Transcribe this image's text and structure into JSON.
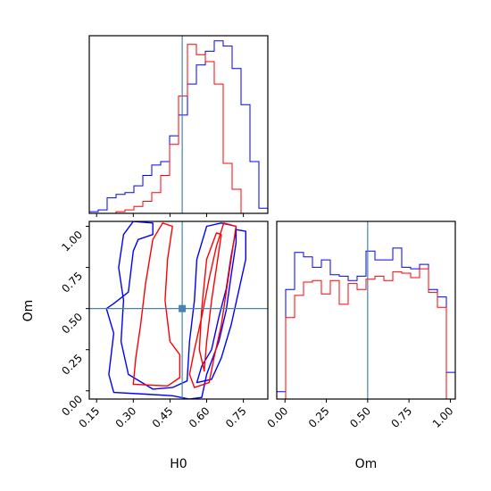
{
  "chart_data": {
    "type": "corner",
    "parameters": [
      "H0",
      "Om"
    ],
    "truths": {
      "H0": 0.5,
      "Om": 0.5
    },
    "truth_color": "#4682b4",
    "series": [
      {
        "color": "#0000ff"
      },
      {
        "color": "#ff0000"
      }
    ],
    "H0": {
      "xlabel": "H0",
      "range": [
        0.12,
        0.85
      ],
      "ticks": [
        0.15,
        0.3,
        0.45,
        0.6,
        0.75
      ],
      "tick_labels": [
        "0.15",
        "0.30",
        "0.45",
        "0.60",
        "0.75"
      ],
      "hist_bins": [
        0.12,
        0.1565,
        0.193,
        0.2295,
        0.266,
        0.3025,
        0.339,
        0.3755,
        0.412,
        0.4485,
        0.485,
        0.5215,
        0.558,
        0.5945,
        0.631,
        0.6675,
        0.704,
        0.7405,
        0.777,
        0.8135,
        0.85
      ],
      "hist_blue": [
        0.01,
        0.02,
        0.09,
        0.11,
        0.12,
        0.16,
        0.22,
        0.28,
        0.3,
        0.45,
        0.57,
        0.75,
        0.86,
        0.94,
        1.0,
        0.97,
        0.84,
        0.63,
        0.3,
        0.03
      ],
      "hist_red": [
        0.0,
        0.0,
        0.0,
        0.01,
        0.02,
        0.04,
        0.07,
        0.12,
        0.22,
        0.4,
        0.68,
        0.98,
        0.92,
        0.88,
        0.75,
        0.29,
        0.14,
        0.0,
        0.0,
        0.0
      ]
    },
    "Om": {
      "xlabel": "Om",
      "ylabel": "Om",
      "range": [
        -0.05,
        1.03
      ],
      "ticks": [
        0.0,
        0.25,
        0.5,
        0.75,
        1.0
      ],
      "tick_labels": [
        "0.00",
        "0.25",
        "0.50",
        "0.75",
        "1.00"
      ],
      "hist_bins": [
        -0.05,
        0.004,
        0.058,
        0.112,
        0.166,
        0.22,
        0.274,
        0.328,
        0.382,
        0.436,
        0.49,
        0.544,
        0.598,
        0.652,
        0.706,
        0.76,
        0.814,
        0.868,
        0.922,
        0.976,
        1.03
      ],
      "hist_blue": [
        0.05,
        0.74,
        0.99,
        0.96,
        0.89,
        0.94,
        0.84,
        0.83,
        0.8,
        0.83,
        1.0,
        0.94,
        0.94,
        1.02,
        0.89,
        0.88,
        0.91,
        0.74,
        0.69,
        0.18
      ],
      "hist_red": [
        0.0,
        0.55,
        0.7,
        0.79,
        0.8,
        0.71,
        0.8,
        0.64,
        0.78,
        0.74,
        0.81,
        0.83,
        0.8,
        0.86,
        0.85,
        0.82,
        0.88,
        0.72,
        0.62,
        0.0
      ]
    },
    "contours": {
      "blue": [
        [
          [
            0.22,
            -0.01
          ],
          [
            0.35,
            -0.02
          ],
          [
            0.46,
            -0.03
          ],
          [
            0.53,
            -0.05
          ],
          [
            0.58,
            -0.04
          ],
          [
            0.6,
            0.1
          ],
          [
            0.65,
            0.3
          ],
          [
            0.68,
            0.49
          ],
          [
            0.7,
            0.7
          ],
          [
            0.72,
            0.9
          ],
          [
            0.72,
            1.0
          ],
          [
            0.66,
            1.02
          ],
          [
            0.6,
            1.0
          ],
          [
            0.56,
            0.8
          ],
          [
            0.55,
            0.55
          ],
          [
            0.53,
            0.3
          ],
          [
            0.52,
            0.06
          ],
          [
            0.46,
            0.02
          ],
          [
            0.38,
            0.01
          ],
          [
            0.28,
            0.1
          ],
          [
            0.25,
            0.3
          ],
          [
            0.26,
            0.55
          ],
          [
            0.24,
            0.75
          ],
          [
            0.26,
            0.95
          ],
          [
            0.3,
            1.03
          ],
          [
            0.38,
            1.02
          ],
          [
            0.38,
            0.95
          ],
          [
            0.32,
            0.92
          ],
          [
            0.3,
            0.85
          ],
          [
            0.28,
            0.6
          ],
          [
            0.22,
            0.53
          ],
          [
            0.19,
            0.5
          ],
          [
            0.22,
            0.35
          ],
          [
            0.2,
            0.1
          ],
          [
            0.22,
            -0.01
          ]
        ],
        [
          [
            0.56,
            0.05
          ],
          [
            0.62,
            0.07
          ],
          [
            0.66,
            0.2
          ],
          [
            0.7,
            0.4
          ],
          [
            0.73,
            0.6
          ],
          [
            0.76,
            0.8
          ],
          [
            0.76,
            0.97
          ],
          [
            0.72,
            0.98
          ],
          [
            0.7,
            0.82
          ],
          [
            0.68,
            0.62
          ],
          [
            0.65,
            0.45
          ],
          [
            0.62,
            0.25
          ],
          [
            0.58,
            0.15
          ],
          [
            0.56,
            0.05
          ]
        ]
      ],
      "red": [
        [
          [
            0.3,
            0.04
          ],
          [
            0.44,
            0.03
          ],
          [
            0.49,
            0.08
          ],
          [
            0.49,
            0.22
          ],
          [
            0.45,
            0.3
          ],
          [
            0.43,
            0.55
          ],
          [
            0.44,
            0.8
          ],
          [
            0.46,
            1.0
          ],
          [
            0.42,
            1.02
          ],
          [
            0.38,
            0.92
          ],
          [
            0.35,
            0.65
          ],
          [
            0.33,
            0.4
          ],
          [
            0.31,
            0.2
          ],
          [
            0.3,
            0.04
          ]
        ],
        [
          [
            0.55,
            0.02
          ],
          [
            0.61,
            0.05
          ],
          [
            0.63,
            0.2
          ],
          [
            0.66,
            0.4
          ],
          [
            0.68,
            0.6
          ],
          [
            0.7,
            0.8
          ],
          [
            0.72,
            1.0
          ],
          [
            0.67,
            1.02
          ],
          [
            0.64,
            0.88
          ],
          [
            0.61,
            0.68
          ],
          [
            0.58,
            0.45
          ],
          [
            0.55,
            0.25
          ],
          [
            0.53,
            0.1
          ],
          [
            0.55,
            0.02
          ]
        ],
        [
          [
            0.59,
            0.12
          ],
          [
            0.6,
            0.3
          ],
          [
            0.62,
            0.55
          ],
          [
            0.64,
            0.75
          ],
          [
            0.66,
            0.95
          ],
          [
            0.64,
            0.96
          ],
          [
            0.6,
            0.8
          ],
          [
            0.58,
            0.5
          ],
          [
            0.57,
            0.25
          ],
          [
            0.59,
            0.12
          ]
        ]
      ]
    }
  }
}
